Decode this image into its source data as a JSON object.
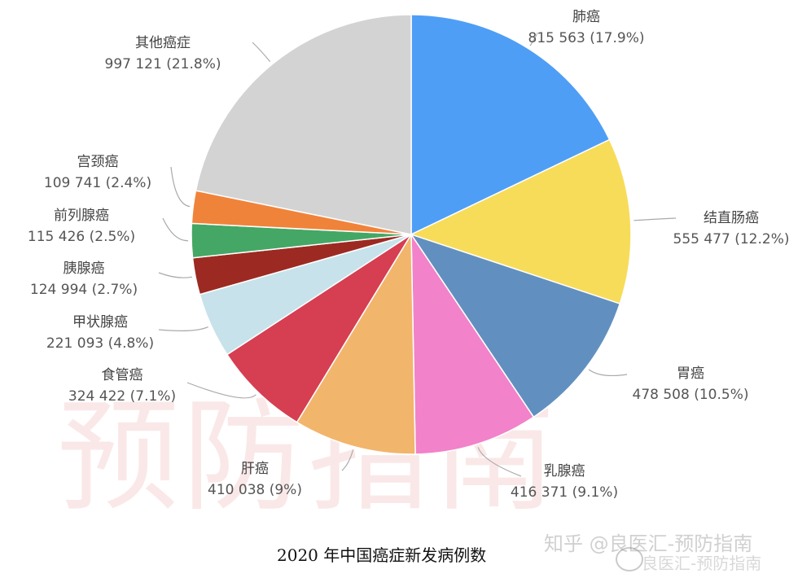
{
  "chart_data": {
    "type": "pie",
    "title": "2020 年中国癌症新发病例数",
    "start_angle": "12 o'clock",
    "direction": "clockwise",
    "slices": [
      {
        "label": "肺癌",
        "value": 815563,
        "value_text": "815 563",
        "percent": 17.9,
        "percent_text": "(17.9%)",
        "color": "#4f9ef5"
      },
      {
        "label": "结直肠癌",
        "value": 555477,
        "value_text": "555 477",
        "percent": 12.2,
        "percent_text": "(12.2%)",
        "color": "#f7dc5a"
      },
      {
        "label": "胃癌",
        "value": 478508,
        "value_text": "478 508",
        "percent": 10.5,
        "percent_text": "(10.5%)",
        "color": "#6190c0"
      },
      {
        "label": "乳腺癌",
        "value": 416371,
        "value_text": "416 371",
        "percent": 9.1,
        "percent_text": "(9.1%)",
        "color": "#f282c9"
      },
      {
        "label": "肝癌",
        "value": 410038,
        "value_text": "410 038",
        "percent": 9.0,
        "percent_text": "(9%)",
        "color": "#f2b56c"
      },
      {
        "label": "食管癌",
        "value": 324422,
        "value_text": "324 422",
        "percent": 7.1,
        "percent_text": "(7.1%)",
        "color": "#d63e52"
      },
      {
        "label": "甲状腺癌",
        "value": 221093,
        "value_text": "221 093",
        "percent": 4.8,
        "percent_text": "(4.8%)",
        "color": "#c7e2ea"
      },
      {
        "label": "胰腺癌",
        "value": 124994,
        "value_text": "124 994",
        "percent": 2.7,
        "percent_text": "(2.7%)",
        "color": "#9c2a22"
      },
      {
        "label": "前列腺癌",
        "value": 115426,
        "value_text": "115 426",
        "percent": 2.5,
        "percent_text": "(2.5%)",
        "color": "#45a765"
      },
      {
        "label": "宫颈癌",
        "value": 109741,
        "value_text": "109 741",
        "percent": 2.4,
        "percent_text": "(2.4%)",
        "color": "#f0833a"
      },
      {
        "label": "其他癌症",
        "value": 997121,
        "value_text": "997 121",
        "percent": 21.8,
        "percent_text": "(21.8%)",
        "color": "#d3d3d3"
      }
    ]
  },
  "caption": "2020 年中国癌症新发病例数",
  "watermarks": {
    "background": "预防指南",
    "zhihu": "知乎 @良医汇-预防指南",
    "weibo": "良医汇-预防指南",
    "weibo_icon": "weibo-icon"
  }
}
